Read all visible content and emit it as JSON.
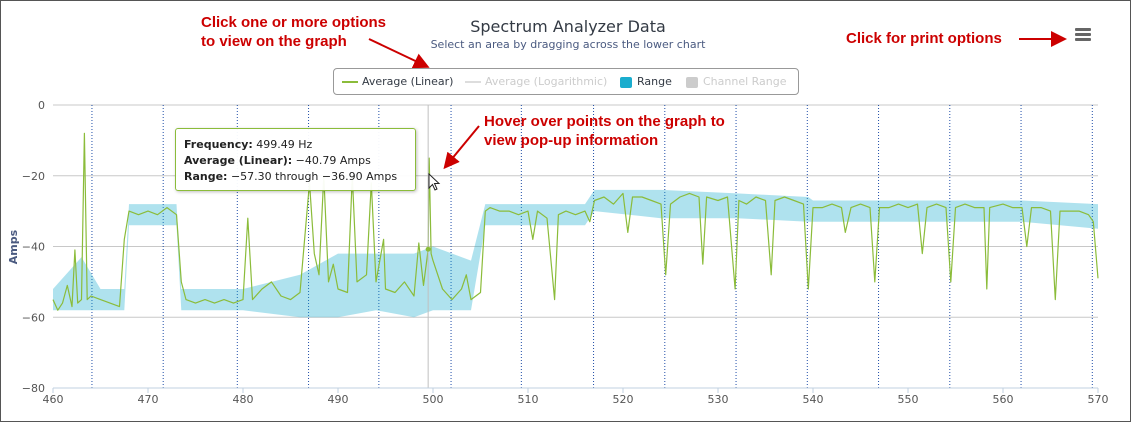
{
  "chart_data": {
    "type": "line",
    "title": "Spectrum Analyzer Data",
    "subtitle": "Select an area by dragging across the lower chart",
    "xlabel": "",
    "ylabel": "Amps",
    "xlim": [
      460,
      570
    ],
    "ylim": [
      -80,
      0
    ],
    "x_ticks": [
      460,
      470,
      480,
      490,
      500,
      510,
      520,
      530,
      540,
      550,
      560,
      570
    ],
    "y_ticks": [
      0,
      -20,
      -40,
      -60,
      -80
    ],
    "grid": true,
    "legend_position": "top-center",
    "channel_markers": [
      464.1,
      471.6,
      479.4,
      486.9,
      494.3,
      501.9,
      509.3,
      516.9,
      524.4,
      531.9,
      539.4,
      546.9,
      554.4,
      561.9,
      569.4
    ],
    "series": [
      {
        "name": "Average (Linear)",
        "color": "#8bbc3a",
        "points": [
          [
            460.0,
            -55
          ],
          [
            460.5,
            -58
          ],
          [
            461.0,
            -56
          ],
          [
            461.5,
            -51
          ],
          [
            462.0,
            -57
          ],
          [
            462.3,
            -41
          ],
          [
            462.6,
            -56
          ],
          [
            463.0,
            -55
          ],
          [
            463.3,
            -8
          ],
          [
            463.6,
            -55
          ],
          [
            464.0,
            -54
          ],
          [
            465.0,
            -55
          ],
          [
            466.0,
            -56
          ],
          [
            467.0,
            -57
          ],
          [
            467.5,
            -38
          ],
          [
            468.0,
            -30
          ],
          [
            469.0,
            -31
          ],
          [
            470.0,
            -30
          ],
          [
            471.0,
            -31
          ],
          [
            472.0,
            -29
          ],
          [
            473.0,
            -31
          ],
          [
            473.5,
            -50
          ],
          [
            474.0,
            -55
          ],
          [
            475.0,
            -56
          ],
          [
            476.0,
            -55
          ],
          [
            477.0,
            -56
          ],
          [
            478.0,
            -55
          ],
          [
            479.0,
            -56
          ],
          [
            480.0,
            -55
          ],
          [
            480.5,
            -32
          ],
          [
            481.0,
            -55
          ],
          [
            482.0,
            -52
          ],
          [
            483.0,
            -50
          ],
          [
            484.0,
            -54
          ],
          [
            485.0,
            -55
          ],
          [
            486.0,
            -53
          ],
          [
            487.0,
            -22
          ],
          [
            487.5,
            -42
          ],
          [
            488.0,
            -48
          ],
          [
            488.5,
            -20
          ],
          [
            489.0,
            -50
          ],
          [
            489.5,
            -45
          ],
          [
            490.0,
            -52
          ],
          [
            491.0,
            -53
          ],
          [
            491.5,
            -20
          ],
          [
            492.0,
            -50
          ],
          [
            493.0,
            -48
          ],
          [
            493.5,
            -22
          ],
          [
            494.0,
            -50
          ],
          [
            494.8,
            -38
          ],
          [
            495.0,
            -52
          ],
          [
            496.0,
            -53
          ],
          [
            497.0,
            -50
          ],
          [
            498.0,
            -54
          ],
          [
            498.5,
            -39
          ],
          [
            499.0,
            -51
          ],
          [
            499.49,
            -40.79
          ],
          [
            499.6,
            -15
          ],
          [
            499.8,
            -42
          ],
          [
            500.0,
            -44
          ],
          [
            501.0,
            -52
          ],
          [
            502.0,
            -55
          ],
          [
            503.0,
            -52
          ],
          [
            503.5,
            -48
          ],
          [
            504.0,
            -55
          ],
          [
            505.0,
            -53
          ],
          [
            505.5,
            -30
          ],
          [
            506.0,
            -29
          ],
          [
            507.0,
            -30
          ],
          [
            508.0,
            -30
          ],
          [
            509.0,
            -31
          ],
          [
            510.0,
            -30
          ],
          [
            510.5,
            -38
          ],
          [
            511.0,
            -30
          ],
          [
            512.0,
            -32
          ],
          [
            512.8,
            -55
          ],
          [
            513.2,
            -31
          ],
          [
            514.0,
            -30
          ],
          [
            515.0,
            -31
          ],
          [
            516.0,
            -30
          ],
          [
            516.5,
            -33
          ],
          [
            517.0,
            -27
          ],
          [
            518.0,
            -26
          ],
          [
            519.0,
            -28
          ],
          [
            520.0,
            -25
          ],
          [
            520.5,
            -36
          ],
          [
            521.0,
            -26
          ],
          [
            522.0,
            -26
          ],
          [
            523.0,
            -27
          ],
          [
            524.0,
            -28
          ],
          [
            524.5,
            -48
          ],
          [
            525.0,
            -28
          ],
          [
            526.0,
            -26
          ],
          [
            527.0,
            -25
          ],
          [
            528.0,
            -26
          ],
          [
            528.4,
            -45
          ],
          [
            528.8,
            -26
          ],
          [
            530.0,
            -27
          ],
          [
            531.0,
            -26
          ],
          [
            531.8,
            -52
          ],
          [
            532.2,
            -27
          ],
          [
            533.0,
            -28
          ],
          [
            534.0,
            -26
          ],
          [
            535.0,
            -27
          ],
          [
            535.6,
            -48
          ],
          [
            536.0,
            -27
          ],
          [
            537.0,
            -26
          ],
          [
            538.0,
            -27
          ],
          [
            539.0,
            -28
          ],
          [
            539.5,
            -52
          ],
          [
            540.0,
            -29
          ],
          [
            541.0,
            -29
          ],
          [
            542.0,
            -28
          ],
          [
            543.0,
            -29
          ],
          [
            543.4,
            -36
          ],
          [
            544.0,
            -29
          ],
          [
            545.0,
            -28
          ],
          [
            546.0,
            -29
          ],
          [
            546.5,
            -50
          ],
          [
            547.0,
            -29
          ],
          [
            548.0,
            -29
          ],
          [
            549.0,
            -28
          ],
          [
            550.0,
            -29
          ],
          [
            551.0,
            -28
          ],
          [
            551.5,
            -42
          ],
          [
            552.0,
            -29
          ],
          [
            553.0,
            -28
          ],
          [
            554.0,
            -29
          ],
          [
            554.5,
            -50
          ],
          [
            555.0,
            -29
          ],
          [
            556.0,
            -28
          ],
          [
            557.0,
            -29
          ],
          [
            558.0,
            -29
          ],
          [
            558.3,
            -52
          ],
          [
            558.6,
            -29
          ],
          [
            560.0,
            -28
          ],
          [
            561.0,
            -29
          ],
          [
            562.0,
            -29
          ],
          [
            562.5,
            -40
          ],
          [
            563.0,
            -29
          ],
          [
            564.0,
            -29
          ],
          [
            565.0,
            -30
          ],
          [
            565.5,
            -55
          ],
          [
            566.0,
            -30
          ],
          [
            567.0,
            -30
          ],
          [
            568.0,
            -30
          ],
          [
            569.0,
            -31
          ],
          [
            569.5,
            -33
          ],
          [
            570.0,
            -49
          ]
        ]
      },
      {
        "name": "Average (Logarithmic)",
        "color": "#cccccc",
        "visible": false
      },
      {
        "name": "Range",
        "color": "#1aadce",
        "band": [
          [
            460.0,
            -58,
            -52
          ],
          [
            463.0,
            -58,
            -43
          ],
          [
            465.0,
            -58,
            -52
          ],
          [
            467.5,
            -58,
            -52
          ],
          [
            468.0,
            -34,
            -28
          ],
          [
            473.0,
            -34,
            -28
          ],
          [
            473.5,
            -58,
            -52
          ],
          [
            480.0,
            -58,
            -52
          ],
          [
            486.0,
            -60,
            -48
          ],
          [
            490.0,
            -60,
            -42
          ],
          [
            494.0,
            -58,
            -42
          ],
          [
            498.0,
            -60,
            -42
          ],
          [
            500.0,
            -58,
            -40
          ],
          [
            504.0,
            -58,
            -44
          ],
          [
            505.5,
            -34,
            -28
          ],
          [
            512.0,
            -34,
            -28
          ],
          [
            516.0,
            -34,
            -28
          ],
          [
            517.0,
            -30,
            -24
          ],
          [
            524.0,
            -32,
            -24
          ],
          [
            532.0,
            -32,
            -25
          ],
          [
            539.5,
            -33,
            -26
          ],
          [
            540.0,
            -33,
            -27
          ],
          [
            547.0,
            -33,
            -27
          ],
          [
            555.0,
            -33,
            -27
          ],
          [
            562.0,
            -33,
            -27
          ],
          [
            570.0,
            -35,
            -28
          ]
        ]
      },
      {
        "name": "Channel Range",
        "color": "#cccccc",
        "visible": false
      }
    ]
  },
  "legend": {
    "items": [
      {
        "label": "Average (Linear)",
        "color": "#8bbc3a",
        "active": true
      },
      {
        "label": "Average (Logarithmic)",
        "color": "#cccccc",
        "active": false
      },
      {
        "label": "Range",
        "color": "#1aadce",
        "active": true
      },
      {
        "label": "Channel Range",
        "color": "#cccccc",
        "active": false
      }
    ]
  },
  "tooltip": {
    "frequency_label": "Frequency:",
    "frequency_value": "499.49 Hz",
    "average_label": "Average (Linear):",
    "average_value": "−40.79 Amps",
    "range_label": "Range:",
    "range_value": "−57.30 through −36.90 Amps"
  },
  "annotations": {
    "options_line1": "Click one or more options",
    "options_line2": "to view on the graph",
    "print": "Click for print options",
    "hover_line1": "Hover over points on the graph to",
    "hover_line2": "view pop-up information"
  },
  "menu_icon": "hamburger-icon",
  "colors": {
    "annotation": "#cc0000",
    "grid": "#c8c8c8",
    "channel_marker": "#1f4ea8"
  }
}
